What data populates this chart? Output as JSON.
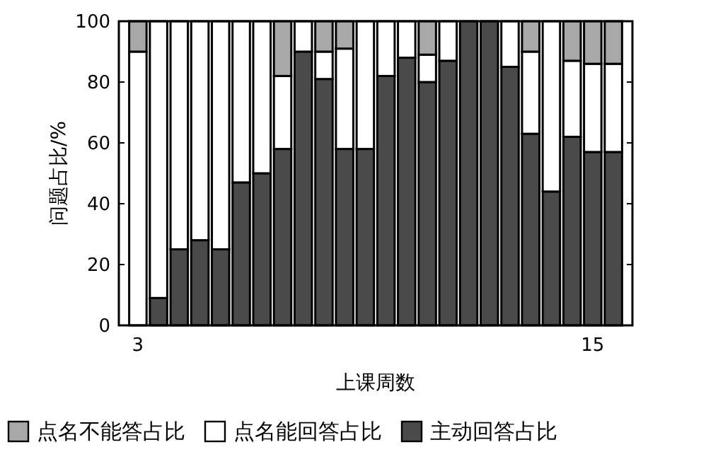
{
  "chart_data": {
    "type": "bar",
    "stacked": true,
    "xlabel": "上课周数",
    "ylabel": "问题占比/%",
    "categories": [
      "3",
      null,
      null,
      null,
      null,
      null,
      null,
      null,
      null,
      null,
      null,
      null,
      null,
      null,
      null,
      null,
      null,
      null,
      null,
      null,
      null,
      null,
      "15",
      null
    ],
    "ylim": [
      0,
      100
    ],
    "yticks": [
      0,
      20,
      40,
      60,
      80,
      100
    ],
    "grid": false,
    "legend": "bottom",
    "series": [
      {
        "name": "主动回答占比",
        "color": "#4a4a4a",
        "values": [
          0,
          9,
          25,
          28,
          25,
          47,
          50,
          58,
          90,
          81,
          58,
          58,
          82,
          88,
          80,
          87,
          100,
          100,
          85,
          63,
          44,
          62,
          57,
          57
        ]
      },
      {
        "name": "点名能回答占比",
        "color": "#ffffff",
        "values": [
          90,
          91,
          75,
          72,
          75,
          53,
          50,
          24,
          10,
          9,
          33,
          42,
          18,
          12,
          9,
          13,
          0,
          0,
          15,
          27,
          56,
          25,
          29,
          29
        ]
      },
      {
        "name": "点名不能答占比",
        "color": "#a8a8a8",
        "values": [
          10,
          0,
          0,
          0,
          0,
          0,
          0,
          18,
          0,
          10,
          9,
          0,
          0,
          0,
          11,
          0,
          0,
          0,
          0,
          10,
          0,
          13,
          14,
          14
        ]
      }
    ]
  }
}
